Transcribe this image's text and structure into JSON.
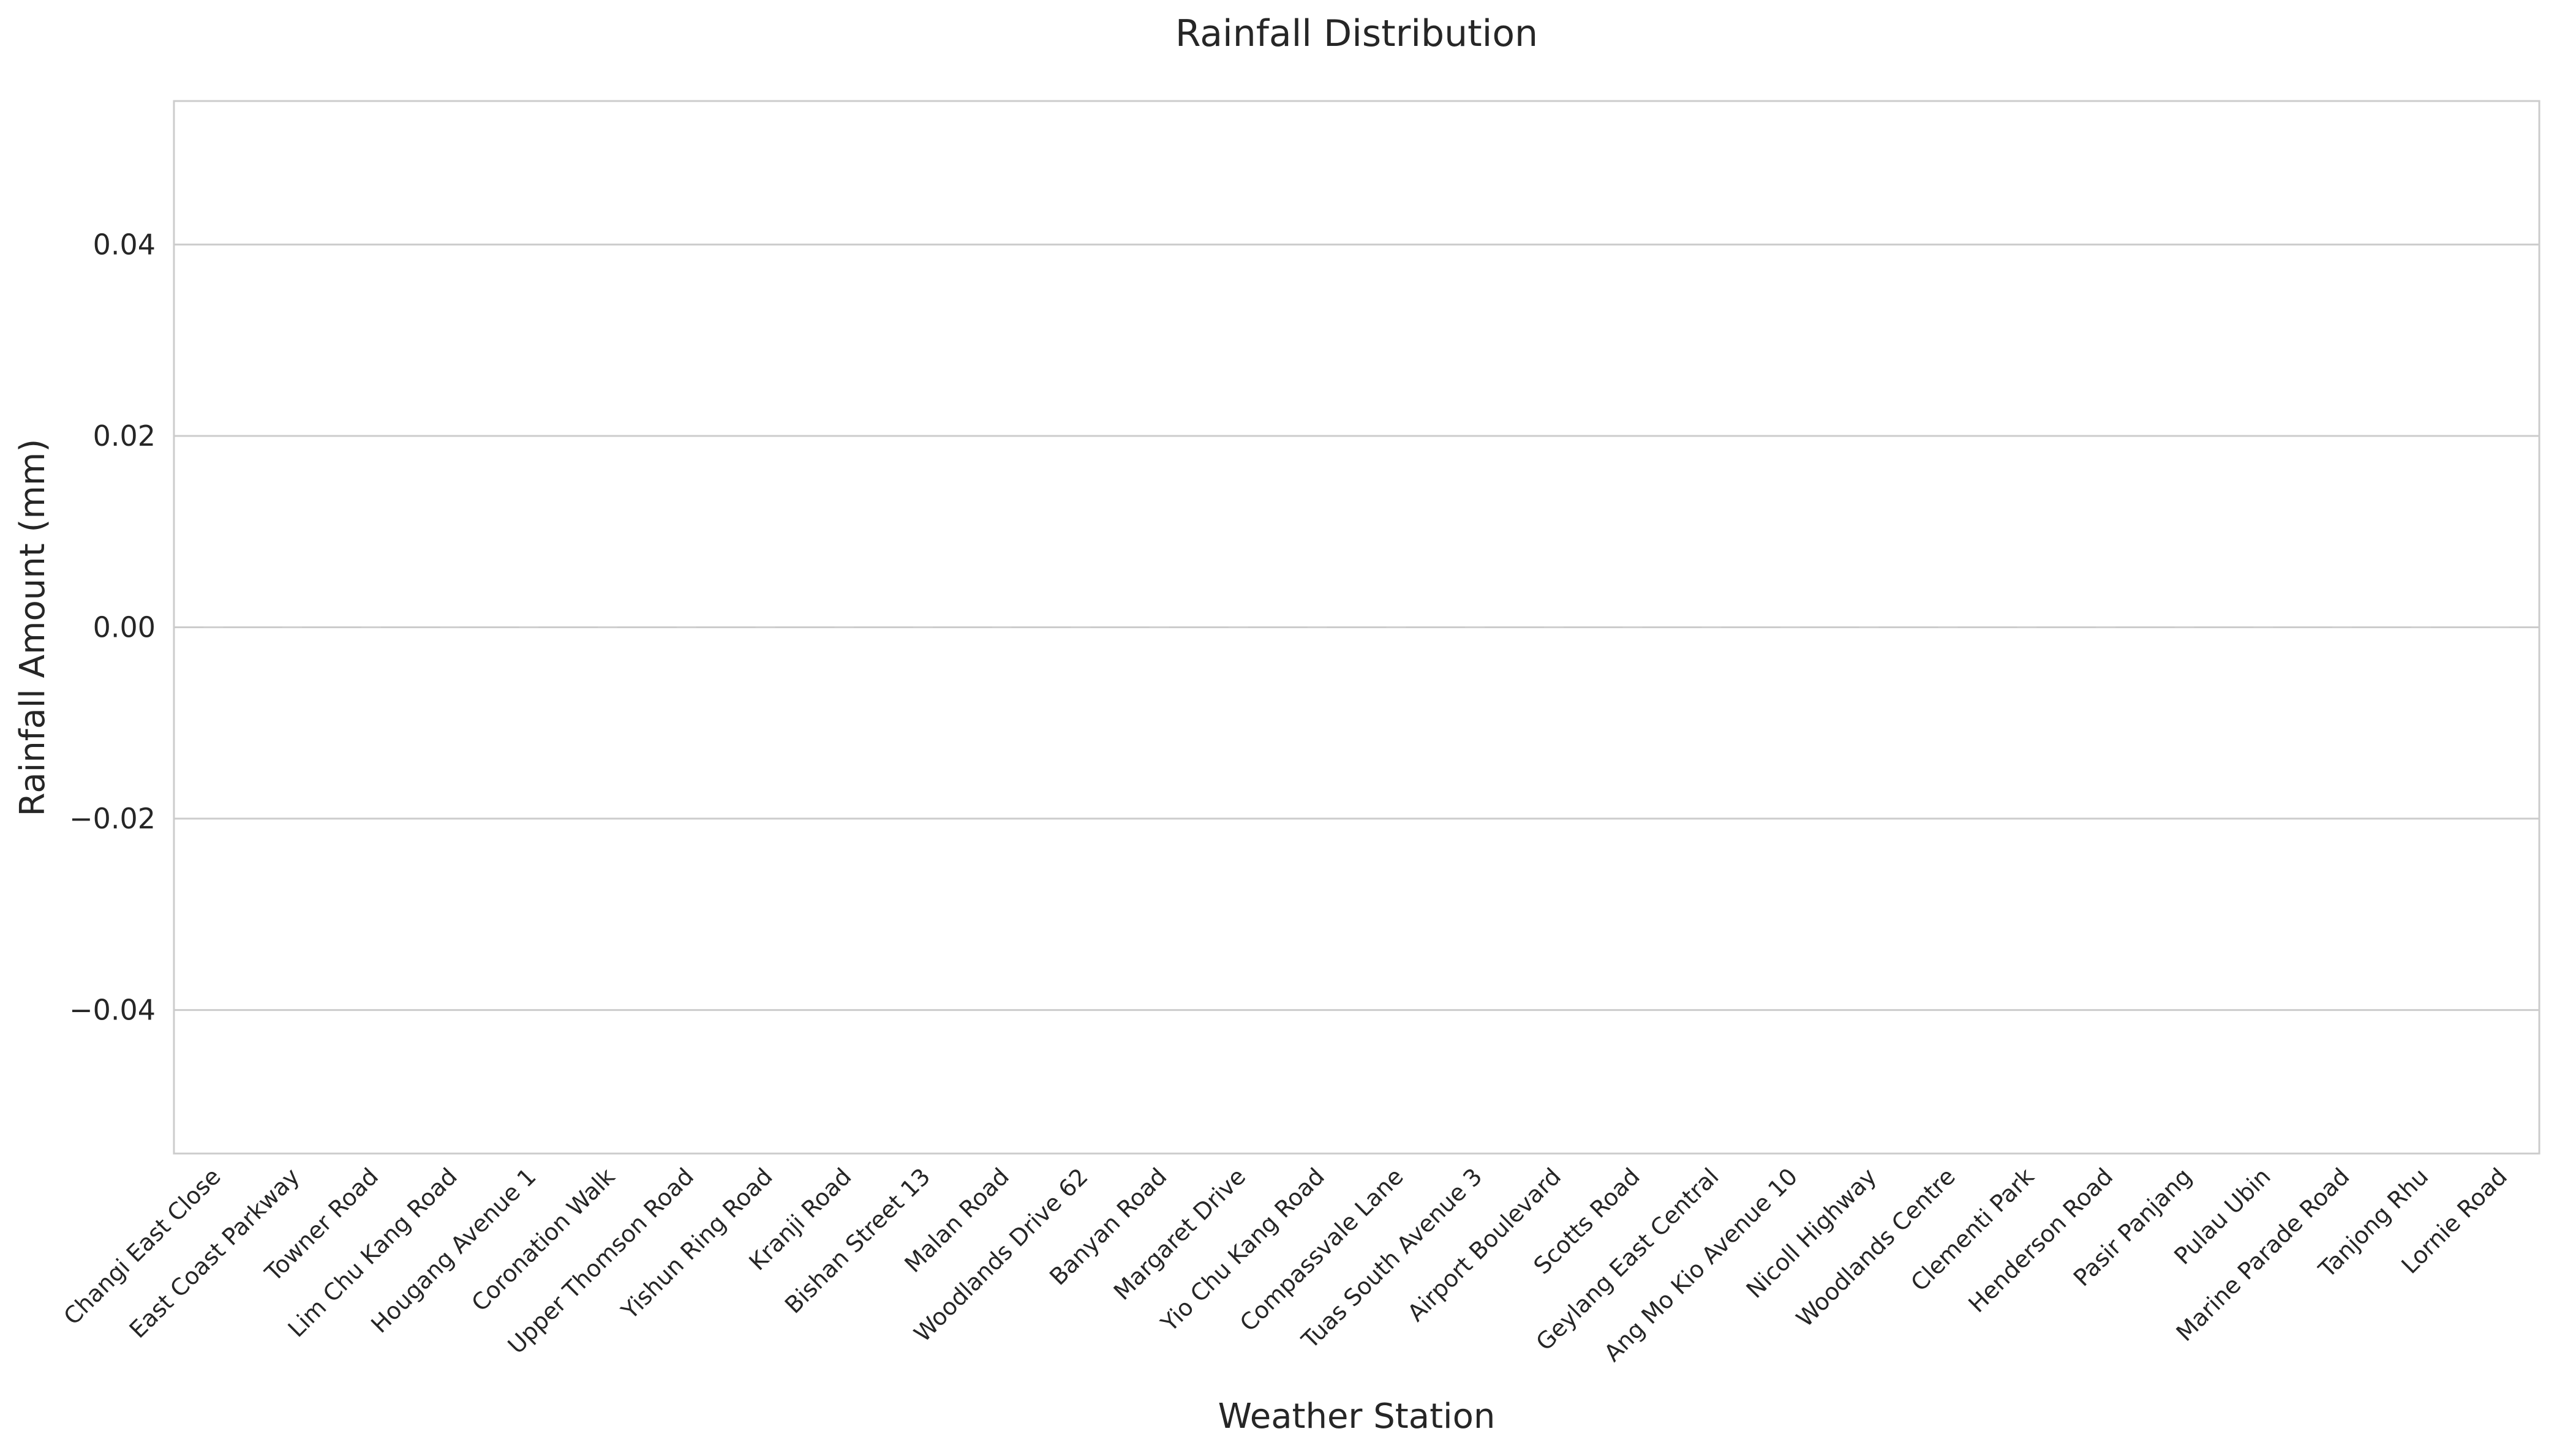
{
  "chart_data": {
    "type": "bar",
    "title": "Rainfall Distribution",
    "xlabel": "Weather Station",
    "ylabel": "Rainfall Amount (mm)",
    "categories": [
      "Changi East Close",
      "East Coast Parkway",
      "Towner Road",
      "Lim Chu Kang Road",
      "Hougang Avenue 1",
      "Coronation Walk",
      "Upper Thomson Road",
      "Yishun Ring Road",
      "Kranji Road",
      "Bishan Street 13",
      "Malan Road",
      "Woodlands Drive 62",
      "Banyan Road",
      "Margaret Drive",
      "Yio Chu Kang Road",
      "Compassvale Lane",
      "Tuas South Avenue 3",
      "Airport Boulevard",
      "Scotts Road",
      "Geylang East Central",
      "Ang Mo Kio Avenue 10",
      "Nicoll Highway",
      "Woodlands Centre",
      "Clementi Park",
      "Henderson Road",
      "Pasir Panjang",
      "Pulau Ubin",
      "Marine Parade Road",
      "Tanjong Rhu",
      "Lornie Road"
    ],
    "values": [
      0,
      0,
      0,
      0,
      0,
      0,
      0,
      0,
      0,
      0,
      0,
      0,
      0,
      0,
      0,
      0,
      0,
      0,
      0,
      0,
      0,
      0,
      0,
      0,
      0,
      0,
      0,
      0,
      0,
      0
    ],
    "ylim": [
      -0.055,
      0.055
    ],
    "yticks": [
      -0.04,
      -0.02,
      0.0,
      0.02,
      0.04
    ],
    "ytick_labels": [
      "−0.04",
      "−0.02",
      "0.00",
      "0.02",
      "0.04"
    ],
    "grid": true,
    "legend": "none",
    "colors": {
      "grid": "#cccccc",
      "spine": "#cccccc",
      "bar_edge": "#cfcfcf",
      "text": "#262626"
    }
  }
}
